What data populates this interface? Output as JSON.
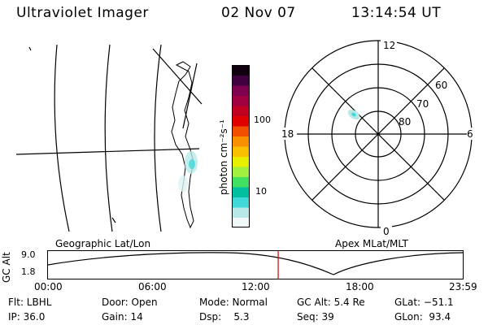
{
  "header": {
    "instrument": "Ultraviolet Imager",
    "date": "02 Nov 07",
    "time": "13:14:54 UT"
  },
  "colorbar": {
    "unit_label": "photon cm⁻²s⁻¹",
    "tick_100": "100",
    "tick_10": "10",
    "colors": [
      "#f0f8f8",
      "#b8e8e8",
      "#40d8d8",
      "#00c0a0",
      "#40e060",
      "#a0f040",
      "#e8f000",
      "#f8c000",
      "#f89000",
      "#f05000",
      "#e00000",
      "#c00020",
      "#a00040",
      "#800050",
      "#400040",
      "#100010"
    ]
  },
  "left_panel": {
    "projection_label": "Geographic Lat/Lon"
  },
  "polar_plot": {
    "mlt_labels": {
      "top": "12",
      "left": "18",
      "right": "6",
      "bottom": "0"
    },
    "lat_labels": [
      "60",
      "70",
      "80"
    ],
    "projection_label": "Apex MLat/MLT"
  },
  "orbit": {
    "axis_label": "GC Alt",
    "y_ticks": [
      "9.0",
      "1.8"
    ],
    "x_ticks": [
      "00:00",
      "06:00",
      "12:00",
      "18:00",
      "23:59"
    ],
    "current_time_fraction": 0.555,
    "marker_color": "#d00000"
  },
  "status": {
    "flt": "Flt: LBHL",
    "ip": "IP: 36.0",
    "door": "Door: Open",
    "gain": "Gain: 14",
    "mode": "Mode: Normal",
    "dsp": "Dsp:    5.3",
    "gc_alt": "GC Alt: 5.4 Re",
    "seq": "Seq: 39",
    "glat": "GLat: −51.1",
    "glon": "GLon:  93.4"
  }
}
